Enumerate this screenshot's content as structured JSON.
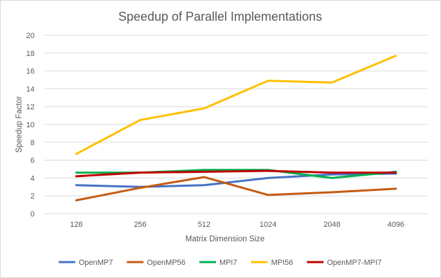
{
  "chart_data": {
    "type": "line",
    "title": "Speedup of Parallel Implementations",
    "xlabel": "Matrix Dimension Size",
    "ylabel": "Speedup Factor",
    "categories": [
      "128",
      "256",
      "512",
      "1024",
      "2048",
      "4096"
    ],
    "ylim": [
      0,
      20
    ],
    "yticks": [
      0,
      2,
      4,
      6,
      8,
      10,
      12,
      14,
      16,
      18,
      20
    ],
    "grid": true,
    "legend_position": "bottom",
    "series": [
      {
        "name": "OpenMP7",
        "color": "#4472C4",
        "values": [
          3.2,
          3.0,
          3.2,
          4.0,
          4.4,
          4.5
        ]
      },
      {
        "name": "OpenMP56",
        "color": "#C55A11",
        "values": [
          1.5,
          2.9,
          4.1,
          2.1,
          2.4,
          2.8
        ]
      },
      {
        "name": "MPI7",
        "color": "#00B050",
        "values": [
          4.6,
          4.6,
          4.9,
          4.9,
          4.0,
          4.7
        ]
      },
      {
        "name": "MPI56",
        "color": "#FFC000",
        "values": [
          6.7,
          10.5,
          11.8,
          14.9,
          14.7,
          17.7
        ]
      },
      {
        "name": "OpenMP7-MPI7",
        "color": "#C00000",
        "values": [
          4.2,
          4.6,
          4.7,
          4.8,
          4.6,
          4.6
        ]
      }
    ]
  }
}
